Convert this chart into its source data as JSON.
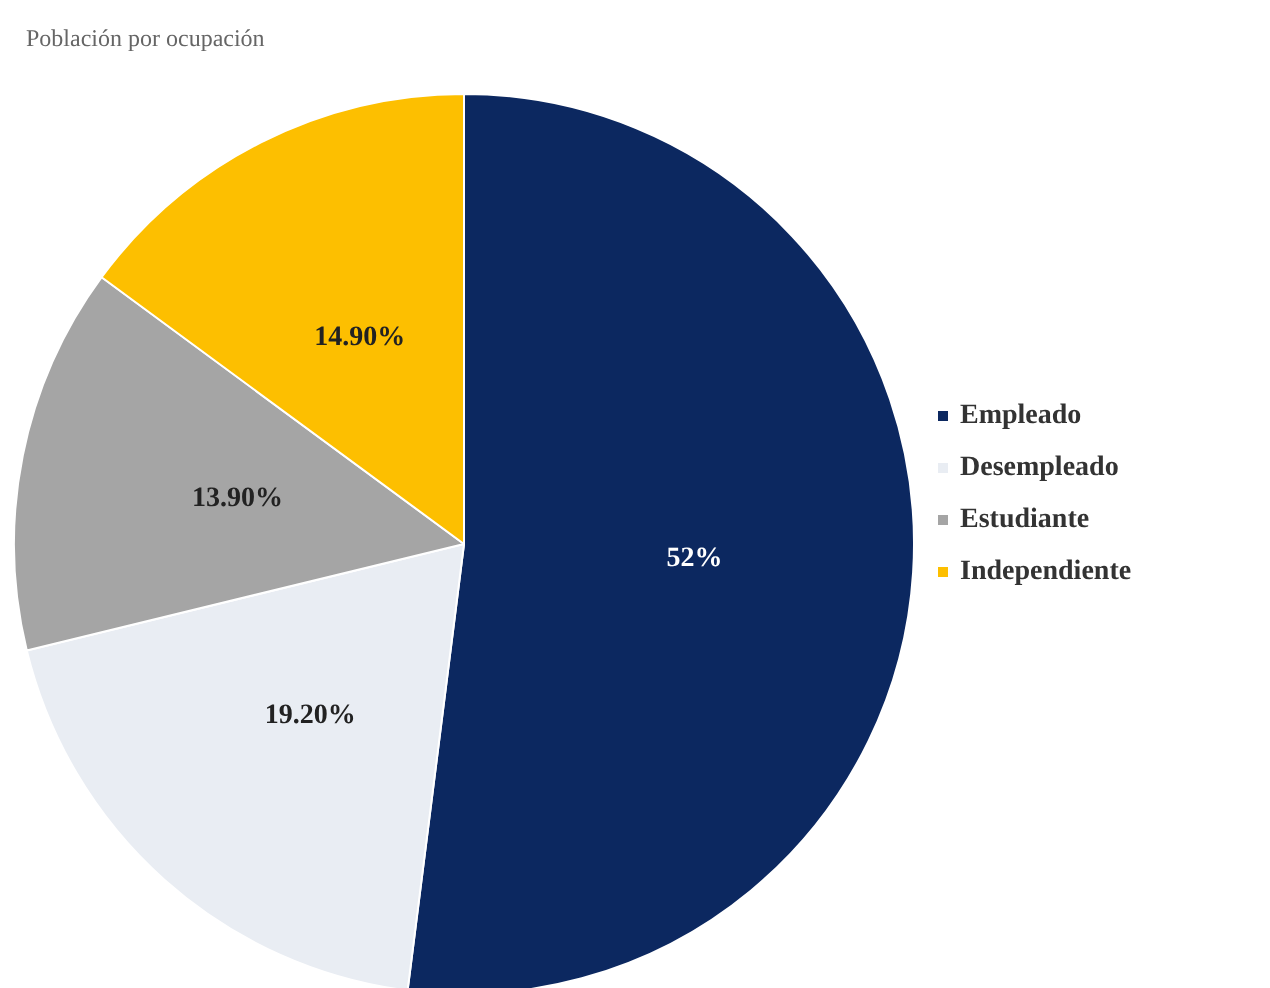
{
  "chart_data": {
    "type": "pie",
    "title": "Población por ocupación",
    "categories": [
      "Empleado",
      "Desempleado",
      "Estudiante",
      "Independiente"
    ],
    "values": [
      52,
      19.2,
      13.9,
      14.9
    ],
    "value_labels": [
      "52%",
      "19.20%",
      "13.90%",
      "14.90%"
    ],
    "colors": [
      "#0c2860",
      "#e9edf3",
      "#a5a5a5",
      "#fdbf00"
    ],
    "legend": "right"
  }
}
